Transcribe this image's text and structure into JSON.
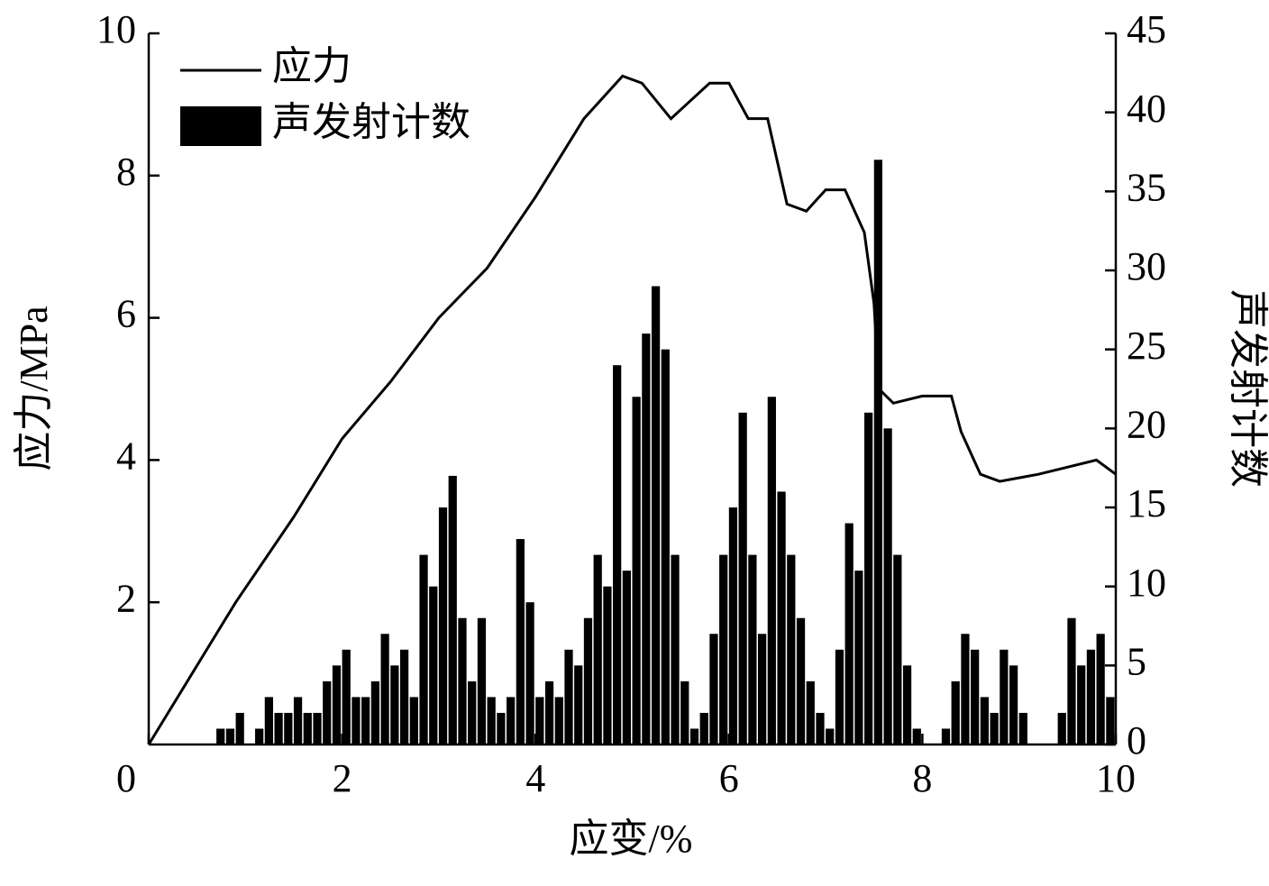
{
  "chart_data": {
    "type": "combo",
    "xlabel": "应变/%",
    "ylabel": "应力/MPa",
    "y2label": "声发射计数",
    "xlim": [
      0,
      10
    ],
    "xticks": [
      0,
      2,
      4,
      6,
      8,
      10
    ],
    "ylim": [
      0,
      10
    ],
    "yticks": [
      2,
      4,
      6,
      8,
      10
    ],
    "y2lim": [
      0,
      45
    ],
    "y2ticks": [
      0,
      5,
      10,
      15,
      20,
      25,
      30,
      35,
      40,
      45
    ],
    "legend": "upper-left",
    "series": [
      {
        "name": "应力",
        "type": "line",
        "color": "#000000",
        "x": [
          0,
          0.9,
          1.5,
          2,
          2.5,
          3,
          3.5,
          4,
          4.5,
          4.9,
          5.1,
          5.4,
          5.8,
          6.0,
          6.2,
          6.4,
          6.6,
          6.8,
          7.0,
          7.2,
          7.4,
          7.5,
          7.55,
          7.7,
          8.0,
          8.3,
          8.4,
          8.6,
          8.8,
          9.2,
          9.5,
          9.8,
          10
        ],
        "values": [
          0,
          2,
          3.2,
          4.3,
          5.1,
          6.0,
          6.7,
          7.7,
          8.8,
          9.4,
          9.3,
          8.8,
          9.3,
          9.3,
          8.8,
          8.8,
          7.6,
          7.5,
          7.8,
          7.8,
          7.2,
          6.2,
          5.0,
          4.8,
          4.9,
          4.9,
          4.4,
          3.8,
          3.7,
          3.8,
          3.9,
          4.0,
          3.8
        ]
      },
      {
        "name": "声发射计数",
        "type": "histogram",
        "axis": "y2",
        "color": "#000000",
        "bins": [
          0,
          0.1,
          0.2,
          0.3,
          0.4,
          0.5,
          0.6,
          0.7,
          0.8,
          0.9,
          1,
          1.1,
          1.2,
          1.3,
          1.4,
          1.5,
          1.6,
          1.7,
          1.8,
          1.9,
          2,
          2.1,
          2.2,
          2.3,
          2.4,
          2.5,
          2.6,
          2.7,
          2.8,
          2.9,
          3,
          3.1,
          3.2,
          3.3,
          3.4,
          3.5,
          3.6,
          3.7,
          3.8,
          3.9,
          4,
          4.1,
          4.2,
          4.3,
          4.4,
          4.5,
          4.6,
          4.7,
          4.8,
          4.9,
          5,
          5.1,
          5.2,
          5.3,
          5.4,
          5.5,
          5.6,
          5.7,
          5.8,
          5.9,
          6,
          6.1,
          6.2,
          6.3,
          6.4,
          6.5,
          6.6,
          6.7,
          6.8,
          6.9,
          7,
          7.1,
          7.2,
          7.3,
          7.4,
          7.5,
          7.6,
          7.7,
          7.8,
          7.9,
          8,
          8.1,
          8.2,
          8.3,
          8.4,
          8.5,
          8.6,
          8.7,
          8.8,
          8.9,
          9,
          9.1,
          9.2,
          9.3,
          9.4,
          9.5,
          9.6,
          9.7,
          9.8,
          9.9,
          10
        ],
        "values": [
          0,
          0,
          0,
          0,
          0,
          0,
          0,
          1,
          1,
          2,
          0,
          1,
          3,
          2,
          2,
          3,
          2,
          2,
          4,
          5,
          6,
          3,
          3,
          4,
          7,
          5,
          6,
          3,
          12,
          10,
          15,
          17,
          8,
          4,
          8,
          3,
          2,
          3,
          13,
          9,
          3,
          4,
          3,
          6,
          5,
          8,
          12,
          10,
          24,
          11,
          22,
          26,
          29,
          25,
          12,
          4,
          1,
          2,
          7,
          12,
          15,
          21,
          12,
          7,
          22,
          16,
          12,
          8,
          4,
          2,
          1,
          6,
          14,
          11,
          21,
          37,
          20,
          12,
          5,
          1,
          0,
          0,
          1,
          4,
          7,
          6,
          3,
          2,
          6,
          5,
          2,
          0,
          0,
          0,
          2,
          8,
          5,
          6,
          7,
          3
        ]
      }
    ]
  }
}
